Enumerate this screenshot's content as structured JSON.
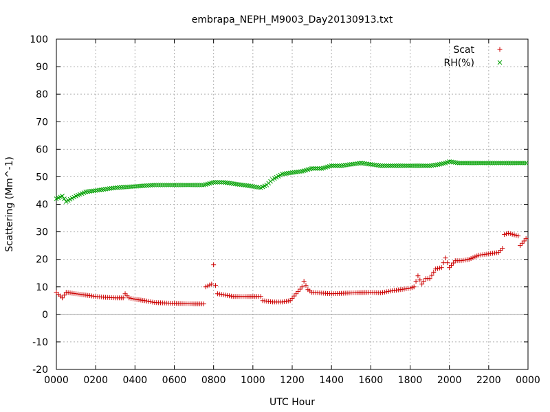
{
  "chart_data": {
    "type": "scatter",
    "title": "embrapa_NEPH_M9003_Day20130913.txt",
    "xlabel": "UTC Hour",
    "ylabel": "Scattering (Mm^-1)",
    "xlim": [
      0,
      24
    ],
    "ylim": [
      -20,
      100
    ],
    "x_ticks": [
      "0000",
      "0200",
      "0400",
      "0600",
      "0800",
      "1000",
      "1200",
      "1400",
      "1600",
      "1800",
      "2000",
      "2200",
      "0000"
    ],
    "y_ticks": [
      "-20",
      "-10",
      "0",
      "10",
      "20",
      "30",
      "40",
      "50",
      "60",
      "70",
      "80",
      "90",
      "100"
    ],
    "grid": true,
    "legend_position": "top-right",
    "zero_line": true,
    "series": [
      {
        "name": "Scat",
        "marker": "+",
        "color": "#cc0000",
        "x": [
          0.0,
          0.3,
          0.5,
          1.0,
          1.5,
          2.0,
          2.5,
          3.0,
          3.4,
          3.5,
          3.7,
          4.0,
          4.5,
          5.0,
          6.0,
          7.0,
          7.5,
          7.6,
          7.9,
          8.0,
          8.1,
          8.2,
          9.0,
          10.0,
          10.4,
          10.5,
          11.0,
          11.5,
          11.9,
          12.2,
          12.5,
          12.6,
          12.8,
          13.0,
          14.0,
          15.0,
          16.0,
          16.5,
          17.0,
          17.5,
          18.0,
          18.2,
          18.4,
          18.6,
          18.8,
          19.0,
          19.3,
          19.6,
          19.8,
          20.0,
          20.3,
          20.6,
          21.0,
          21.5,
          22.0,
          22.5,
          22.7,
          22.8,
          23.0,
          23.5,
          23.6,
          23.9
        ],
        "values": [
          8,
          6,
          8,
          7.5,
          7,
          6.5,
          6.2,
          6,
          6,
          7.5,
          6,
          5.5,
          5,
          4.3,
          4,
          3.8,
          3.8,
          10,
          11,
          18,
          10.5,
          7.5,
          6.5,
          6.5,
          6.5,
          5,
          4.5,
          4.5,
          5,
          7.5,
          10,
          12,
          9,
          8,
          7.5,
          7.8,
          8,
          7.8,
          8.5,
          9,
          9.5,
          10,
          14,
          11,
          13,
          13,
          16.5,
          17,
          20.5,
          17,
          19.5,
          19.5,
          20,
          21.5,
          22,
          22.5,
          24,
          29,
          29.5,
          28.5,
          25,
          27.5
        ]
      },
      {
        "name": "RH(%)",
        "marker": "x",
        "color": "#00a000",
        "x": [
          0.0,
          0.3,
          0.5,
          1.0,
          1.5,
          2.0,
          2.5,
          3.0,
          4.0,
          5.0,
          6.0,
          7.0,
          7.5,
          8.0,
          8.5,
          9.0,
          9.5,
          10.0,
          10.4,
          10.7,
          11.0,
          11.5,
          12.0,
          12.5,
          13.0,
          13.5,
          14.0,
          14.5,
          15.0,
          15.5,
          16.0,
          16.5,
          17.0,
          17.5,
          18.0,
          18.5,
          19.0,
          19.5,
          19.8,
          20.0,
          20.5,
          21.0,
          21.5,
          22.0,
          22.5,
          23.0,
          23.5,
          23.9
        ],
        "values": [
          42,
          43,
          41,
          43,
          44.5,
          45,
          45.5,
          46,
          46.5,
          47,
          47,
          47,
          47,
          48,
          48,
          47.5,
          47,
          46.5,
          46,
          47,
          49,
          51,
          51.5,
          52,
          53,
          53,
          54,
          54,
          54.5,
          55,
          54.5,
          54,
          54,
          54,
          54,
          54,
          54,
          54.5,
          55,
          55.5,
          55,
          55,
          55,
          55,
          55,
          55,
          55,
          55
        ]
      }
    ]
  }
}
